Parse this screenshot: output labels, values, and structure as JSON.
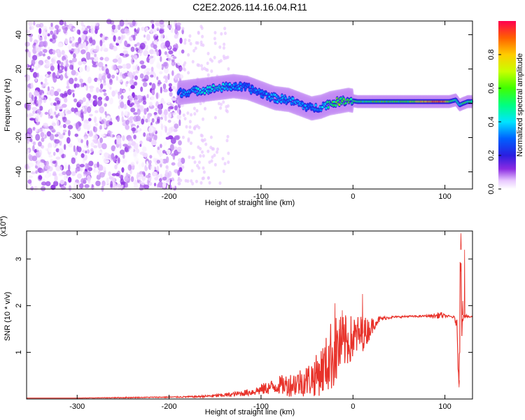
{
  "figure_title": "C2E2.2026.114.16.04.R11",
  "colors": {
    "snr_line": "#e8322a",
    "spectrogram_bg": "#ffffff",
    "axis": "#000000"
  },
  "chart_data": [
    {
      "type": "heatmap",
      "xlabel": "Height of straight line (km)",
      "ylabel": "Frequency (Hz)",
      "xlim": [
        -355,
        130
      ],
      "ylim": [
        -50,
        48
      ],
      "x_ticks": [
        -300,
        -200,
        -100,
        0,
        100
      ],
      "y_ticks": [
        -40,
        -20,
        0,
        20,
        40
      ],
      "x_tick_labels": [
        "-300",
        "-200",
        "-100",
        "0",
        "100"
      ],
      "y_tick_labels": [
        "-40",
        "-20",
        "0",
        "20",
        "40"
      ],
      "colorbar": {
        "label": "Normalized spectral amplitude",
        "range": [
          0,
          1
        ],
        "ticks": [
          0.0,
          0.2,
          0.4,
          0.6,
          0.8
        ],
        "tick_labels": [
          "0.0",
          "0.2",
          "0.4",
          "0.6",
          "0.8"
        ],
        "colormap": "rainbow"
      },
      "noise_region": {
        "x_range": [
          -355,
          -185
        ],
        "y_range": [
          -50,
          48
        ],
        "amplitude_range": [
          0.0,
          0.12
        ]
      },
      "ridge": {
        "x": [
          -190,
          -175,
          -160,
          -145,
          -130,
          -115,
          -100,
          -85,
          -70,
          -55,
          -45,
          -35,
          -25,
          -15,
          -5,
          5,
          20,
          40,
          60,
          80,
          95,
          105,
          112,
          116,
          120,
          125,
          130
        ],
        "freq": [
          6,
          7,
          8,
          9,
          10,
          9,
          6,
          3,
          2,
          -1,
          -3,
          -2,
          0,
          1,
          2,
          1,
          1,
          1,
          1,
          1,
          1,
          1,
          2,
          -1,
          0,
          1,
          1
        ],
        "amplitude": [
          0.3,
          0.35,
          0.4,
          0.4,
          0.35,
          0.3,
          0.3,
          0.35,
          0.35,
          0.35,
          0.3,
          0.35,
          0.5,
          0.6,
          0.55,
          0.5,
          0.55,
          0.55,
          0.55,
          0.8,
          0.95,
          0.6,
          0.45,
          0.4,
          0.5,
          0.5,
          0.5
        ]
      }
    },
    {
      "type": "line",
      "xlabel": "Height of straight line (km)",
      "ylabel": "SNR (10 * v/v)",
      "y_multiplier_label": "(x10",
      "y_multiplier_exponent": "4",
      "xlim": [
        -355,
        130
      ],
      "ylim": [
        0,
        3.6
      ],
      "x_ticks": [
        -300,
        -200,
        -100,
        0,
        100
      ],
      "y_ticks": [
        1,
        2,
        3
      ],
      "x_tick_labels": [
        "-300",
        "-200",
        "-100",
        "0",
        "100"
      ],
      "y_tick_labels": [
        "1",
        "2",
        "3"
      ],
      "series": [
        {
          "x": [
            -355,
            -300,
            -250,
            -200,
            -170,
            -150,
            -130,
            -110,
            -100,
            -90,
            -80,
            -70,
            -60,
            -50,
            -40,
            -30,
            -25,
            -20,
            -15,
            -10,
            -5,
            0,
            5,
            10,
            15,
            20,
            25,
            30,
            40,
            50,
            60,
            70,
            80,
            90,
            95,
            100,
            105,
            110,
            113,
            115,
            116,
            117,
            118,
            120,
            125,
            130
          ],
          "y": [
            0.02,
            0.02,
            0.03,
            0.04,
            0.05,
            0.07,
            0.1,
            0.15,
            0.2,
            0.25,
            0.3,
            0.3,
            0.35,
            0.4,
            0.5,
            0.7,
            0.9,
            1.0,
            1.1,
            1.2,
            1.25,
            1.3,
            1.35,
            1.4,
            1.45,
            1.55,
            1.65,
            1.72,
            1.75,
            1.76,
            1.77,
            1.77,
            1.78,
            1.78,
            1.8,
            1.78,
            1.77,
            1.75,
            1.6,
            0.4,
            1.5,
            3.2,
            1.8,
            1.8,
            1.76,
            1.76
          ],
          "noise_envelope": [
            0.0,
            0.0,
            0.01,
            0.01,
            0.02,
            0.03,
            0.05,
            0.08,
            0.12,
            0.15,
            0.2,
            0.25,
            0.3,
            0.35,
            0.45,
            0.6,
            0.75,
            0.8,
            0.7,
            0.6,
            0.55,
            0.5,
            0.45,
            0.4,
            0.3,
            0.2,
            0.1,
            0.05,
            0.03,
            0.02,
            0.02,
            0.02,
            0.02,
            0.05,
            0.08,
            0.03,
            0.02,
            0.03,
            0.1,
            0.2,
            0.8,
            0.5,
            0.6,
            0.05,
            0.02,
            0.02
          ]
        }
      ]
    }
  ]
}
